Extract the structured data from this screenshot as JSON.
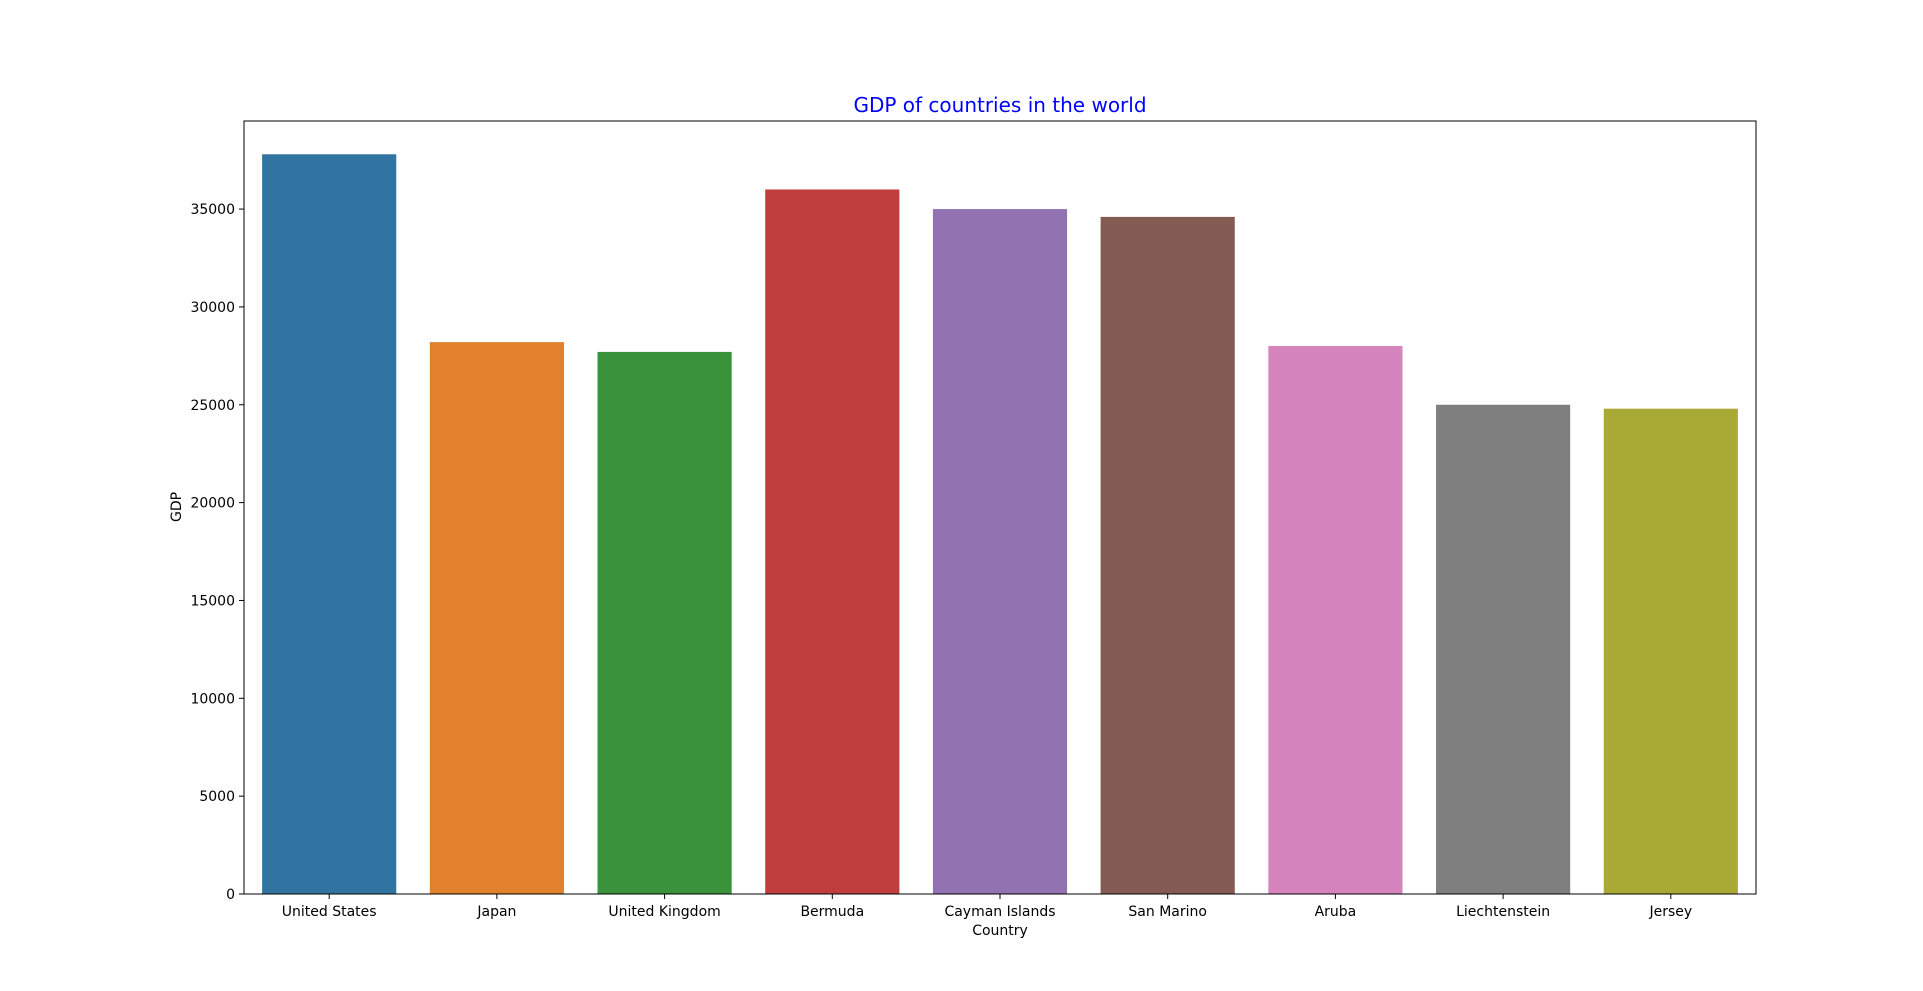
{
  "chart_data": {
    "type": "bar",
    "title": "GDP of countries in the world",
    "title_color": "#0000ff",
    "xlabel": "Country",
    "ylabel": "GDP",
    "ylim": [
      0,
      39500
    ],
    "yticks": [
      0,
      5000,
      10000,
      15000,
      20000,
      25000,
      30000,
      35000
    ],
    "ytick_labels": [
      "0",
      "5000",
      "10000",
      "15000",
      "20000",
      "25000",
      "30000",
      "35000"
    ],
    "grid": false,
    "legend": "none",
    "categories": [
      "United States",
      "Japan",
      "United Kingdom",
      "Bermuda",
      "Cayman Islands",
      "San Marino",
      "Aruba",
      "Liechtenstein",
      "Jersey"
    ],
    "values": [
      37800,
      28200,
      27700,
      36000,
      35000,
      34600,
      28000,
      25000,
      24800
    ],
    "colors": [
      "#3274a1",
      "#e1812c",
      "#3a923a",
      "#c03d3e",
      "#9372b2",
      "#845b53",
      "#d684bd",
      "#7f7f7f",
      "#a9aa35"
    ]
  }
}
